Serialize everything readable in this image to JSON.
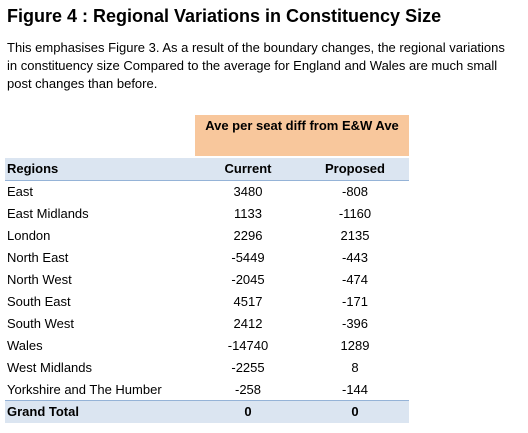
{
  "title": "Figure 4 : Regional Variations in Constituency Size",
  "description": "This emphasises Figure 3. As a result of the boundary changes, the regional variations in constituency size Compared to the average for England and Wales are much small post changes than before.",
  "table": {
    "group_header": "Ave per seat diff from E&W Ave",
    "columns": [
      "Regions",
      "Current",
      "Proposed"
    ],
    "rows": [
      {
        "region": "East",
        "current": "3480",
        "proposed": "-808"
      },
      {
        "region": "East Midlands",
        "current": "1133",
        "proposed": "-1160"
      },
      {
        "region": "London",
        "current": "2296",
        "proposed": "2135"
      },
      {
        "region": "North East",
        "current": "-5449",
        "proposed": "-443"
      },
      {
        "region": "North West",
        "current": "-2045",
        "proposed": "-474"
      },
      {
        "region": "South East",
        "current": "4517",
        "proposed": "-171"
      },
      {
        "region": "South West",
        "current": "2412",
        "proposed": "-396"
      },
      {
        "region": "Wales",
        "current": "-14740",
        "proposed": "1289"
      },
      {
        "region": "West Midlands",
        "current": "-2255",
        "proposed": "8"
      },
      {
        "region": "Yorkshire and The Humber",
        "current": "-258",
        "proposed": "-144"
      }
    ],
    "total": {
      "region": "Grand Total",
      "current": "0",
      "proposed": "0"
    }
  },
  "colors": {
    "group_header_fill": "#f8c79c",
    "header_fill": "#dbe5f1",
    "header_border": "#95b3d7"
  }
}
